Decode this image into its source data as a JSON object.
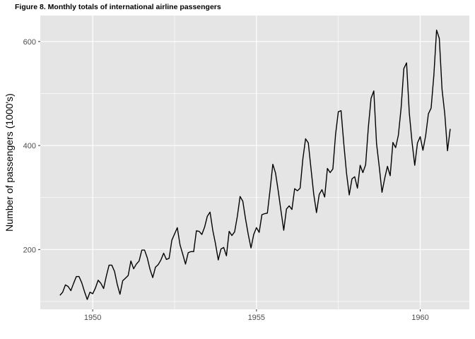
{
  "chart_data": {
    "type": "line",
    "title": "Figure 8. Monthly totals of international airline passengers",
    "xlabel": "",
    "ylabel": "Number of passengers (1000's)",
    "x_start": 1949,
    "x_step": 0.08333,
    "xlim": [
      1948.4,
      1961.5
    ],
    "ylim": [
      85,
      650
    ],
    "x_ticks": [
      1950,
      1955,
      1960
    ],
    "x_tick_labels": [
      "1950",
      "1955",
      "1960"
    ],
    "y_ticks": [
      200,
      400,
      600
    ],
    "y_tick_labels": [
      "200",
      "400",
      "600"
    ],
    "grid": true,
    "legend": "none",
    "series": [
      {
        "values": [
          112,
          118,
          132,
          129,
          121,
          135,
          148,
          148,
          136,
          119,
          104,
          118,
          115,
          126,
          141,
          135,
          125,
          149,
          170,
          170,
          158,
          133,
          114,
          140,
          145,
          150,
          178,
          163,
          172,
          178,
          199,
          199,
          184,
          162,
          146,
          166,
          171,
          180,
          193,
          181,
          183,
          218,
          230,
          242,
          209,
          191,
          172,
          194,
          196,
          196,
          236,
          235,
          229,
          243,
          264,
          272,
          237,
          211,
          180,
          201,
          204,
          188,
          235,
          227,
          234,
          264,
          302,
          293,
          259,
          229,
          203,
          229,
          242,
          233,
          267,
          269,
          270,
          315,
          364,
          347,
          312,
          274,
          237,
          278,
          284,
          277,
          317,
          313,
          318,
          374,
          413,
          405,
          355,
          306,
          271,
          306,
          315,
          301,
          356,
          348,
          355,
          422,
          465,
          467,
          404,
          347,
          305,
          336,
          340,
          318,
          362,
          348,
          363,
          435,
          491,
          505,
          404,
          359,
          310,
          337,
          360,
          342,
          406,
          396,
          420,
          472,
          548,
          559,
          463,
          407,
          362,
          405,
          417,
          391,
          419,
          461,
          472,
          535,
          622,
          606,
          508,
          461,
          390,
          432
        ]
      }
    ]
  },
  "colors": {
    "panel_background": "#e5e5e5",
    "grid": "#ffffff",
    "line": "#000000",
    "tick_text": "#4d4d4d"
  }
}
